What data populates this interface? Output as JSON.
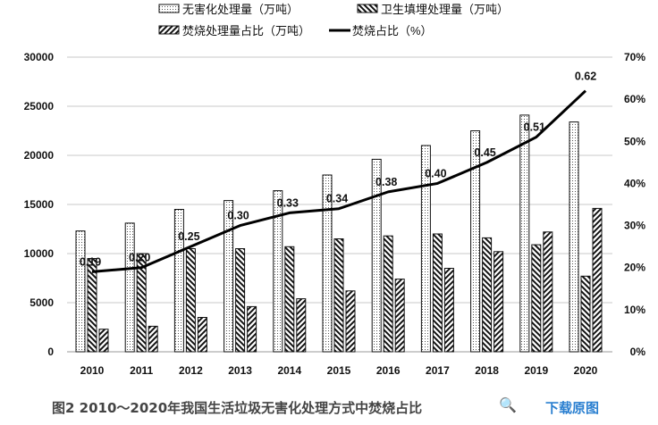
{
  "chart_data": {
    "type": "bar",
    "categories": [
      "2010",
      "2011",
      "2012",
      "2013",
      "2014",
      "2015",
      "2016",
      "2017",
      "2018",
      "2019",
      "2020"
    ],
    "series": [
      {
        "name": "无害化处理量（万吨）",
        "axis": "left",
        "pattern": "dots",
        "values": [
          12300,
          13100,
          14500,
          15400,
          16400,
          18000,
          19600,
          21000,
          22500,
          24100,
          23400
        ]
      },
      {
        "name": "卫生填埋处理量（万吨）",
        "axis": "left",
        "pattern": "backslash",
        "values": [
          9500,
          10000,
          10500,
          10500,
          10700,
          11500,
          11800,
          12000,
          11600,
          10900,
          7700
        ]
      },
      {
        "name": "焚烧处理量占比（万吨）",
        "axis": "left",
        "pattern": "slash",
        "values": [
          2300,
          2600,
          3500,
          4600,
          5400,
          6200,
          7400,
          8500,
          10200,
          12200,
          14600
        ]
      },
      {
        "name": "焚烧占比（%）",
        "axis": "right",
        "type": "line",
        "values": [
          0.19,
          0.2,
          0.25,
          0.3,
          0.33,
          0.34,
          0.38,
          0.4,
          0.45,
          0.51,
          0.62
        ],
        "labels": [
          "0.19",
          "0.20",
          "0.25",
          "0.30",
          "0.33",
          "0.34",
          "0.38",
          "0.40",
          "0.45",
          "0.51",
          "0.62"
        ]
      }
    ],
    "ylim": [
      0,
      30000
    ],
    "yticks": [
      "0",
      "5000",
      "10000",
      "15000",
      "20000",
      "25000",
      "30000"
    ],
    "y2lim": [
      0,
      70
    ],
    "y2ticks": [
      "0%",
      "10%",
      "20%",
      "30%",
      "40%",
      "50%",
      "60%",
      "70%"
    ],
    "grid": true,
    "legend": "top"
  },
  "caption": "图2 2010～2020年我国生活垃圾无害化处理方式中焚烧占比",
  "zoom_icon": "magnifier-plus-icon",
  "download_label": "下载原图",
  "colors": {
    "link": "#2a7fd0",
    "caption": "#444444"
  }
}
